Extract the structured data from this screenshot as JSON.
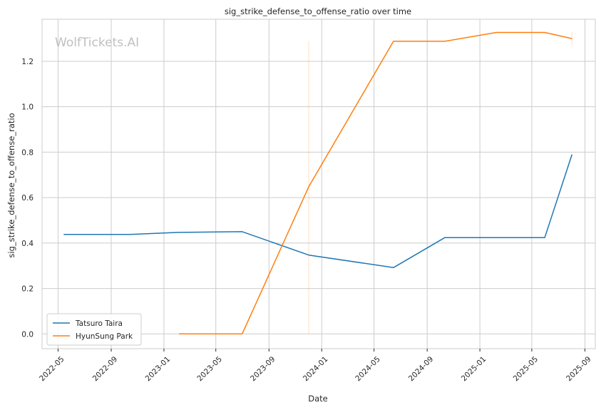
{
  "chart_data": {
    "type": "line",
    "title": "sig_strike_defense_to_offense_ratio over time",
    "xlabel": "Date",
    "ylabel": "sig_strike_defense_to_offense_ratio",
    "watermark": "WolfTickets.AI",
    "x_ticks": [
      "2022-05",
      "2022-09",
      "2023-01",
      "2023-05",
      "2023-09",
      "2024-01",
      "2024-05",
      "2024-09",
      "2025-01",
      "2025-05",
      "2025-09"
    ],
    "y_ticks": [
      0.0,
      0.2,
      0.4,
      0.6,
      0.8,
      1.0,
      1.2
    ],
    "y_tick_labels": [
      "0.0",
      "0.2",
      "0.4",
      "0.6",
      "0.8",
      "1.0",
      "1.2"
    ],
    "xlim": [
      "2022-03-25",
      "2025-09-25"
    ],
    "ylim": [
      -0.065,
      1.385
    ],
    "grid": true,
    "legend_position": "lower-left",
    "series": [
      {
        "name": "Tatsuro Taira",
        "color": "#1f77b4",
        "points": [
          {
            "x": "2022-05-14",
            "y": 0.438
          },
          {
            "x": "2022-10-15",
            "y": 0.438
          },
          {
            "x": "2023-02-05",
            "y": 0.447
          },
          {
            "x": "2023-07-01",
            "y": 0.45
          },
          {
            "x": "2023-12-02",
            "y": 0.347
          },
          {
            "x": "2024-06-15",
            "y": 0.292
          },
          {
            "x": "2024-10-12",
            "y": 0.424
          },
          {
            "x": "2025-05-31",
            "y": 0.424
          },
          {
            "x": "2025-08-02",
            "y": 0.79
          }
        ]
      },
      {
        "name": "HyunSung Park",
        "color": "#ff7f0e",
        "points": [
          {
            "x": "2023-02-05",
            "y": 0.0
          },
          {
            "x": "2023-07-01",
            "y": 0.0
          },
          {
            "x": "2023-12-02",
            "y": 0.648
          },
          {
            "x": "2024-06-15",
            "y": 1.288
          },
          {
            "x": "2024-10-12",
            "y": 1.288
          },
          {
            "x": "2025-02-08",
            "y": 1.327
          },
          {
            "x": "2025-05-31",
            "y": 1.327
          },
          {
            "x": "2025-08-02",
            "y": 1.3
          }
        ]
      }
    ],
    "faint_vertical_bands": [
      {
        "color": "#ff7f0e",
        "x": "2023-12-02",
        "y_range": [
          0.0,
          1.29
        ]
      },
      {
        "color": "#ff7f0e",
        "x": "2025-08-02",
        "y_range": [
          1.27,
          1.33
        ]
      }
    ]
  }
}
